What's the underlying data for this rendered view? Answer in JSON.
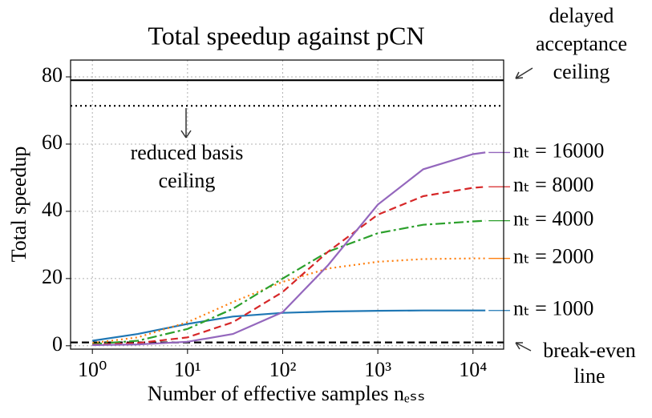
{
  "chart_data": {
    "type": "line",
    "title": "Total speedup against pCN",
    "xlabel": "Number of effective samples nₑₛₛ",
    "ylabel": "Total speedup",
    "xscale": "log",
    "xlim": [
      0.59,
      21000
    ],
    "ylim": [
      -1,
      85
    ],
    "xticks": [
      {
        "value": 1,
        "label": "10⁰"
      },
      {
        "value": 10,
        "label": "10¹"
      },
      {
        "value": 100,
        "label": "10²"
      },
      {
        "value": 1000,
        "label": "10³"
      },
      {
        "value": 10000,
        "label": "10⁴"
      }
    ],
    "yticks": [
      0,
      20,
      40,
      60,
      80
    ],
    "grid": true,
    "x": [
      1,
      3,
      10,
      30,
      100,
      300,
      1000,
      3000,
      10000,
      13500
    ],
    "series": [
      {
        "name": "nₜ = 1000",
        "color": "#1f77b4",
        "dash": "solid",
        "values": [
          1.5,
          3.5,
          6.5,
          8.7,
          9.8,
          10.2,
          10.4,
          10.5,
          10.5,
          10.5
        ]
      },
      {
        "name": "nₜ = 2000",
        "color": "#ff7f0e",
        "dash": "dotted",
        "values": [
          0.8,
          2.5,
          7,
          13,
          19,
          23,
          25,
          25.8,
          26,
          26
        ]
      },
      {
        "name": "nₜ = 4000",
        "color": "#2ca02c",
        "dash": "dashdot",
        "values": [
          0.5,
          1.5,
          5,
          11,
          20,
          28,
          33.5,
          36,
          37,
          37.2
        ]
      },
      {
        "name": "nₜ = 8000",
        "color": "#d62728",
        "dash": "dashed",
        "values": [
          0.3,
          0.8,
          2.5,
          7,
          16,
          28,
          39,
          44.5,
          47,
          47.3
        ]
      },
      {
        "name": "nₜ = 16000",
        "color": "#9467bd",
        "dash": "solid",
        "values": [
          0.2,
          0.4,
          1.2,
          3.5,
          10,
          24,
          42,
          52.5,
          57,
          57.5
        ]
      }
    ],
    "hlines": [
      {
        "value": 79,
        "style": "solid"
      },
      {
        "value": 71.4,
        "style": "dotted"
      },
      {
        "value": 1,
        "style": "dashed"
      }
    ],
    "annotations": [
      {
        "lines": [
          "delayed",
          "acceptance",
          "ceiling"
        ]
      },
      {
        "lines": [
          "reduced basis",
          "ceiling"
        ]
      },
      {
        "lines": [
          "break-even",
          "line"
        ]
      }
    ]
  }
}
